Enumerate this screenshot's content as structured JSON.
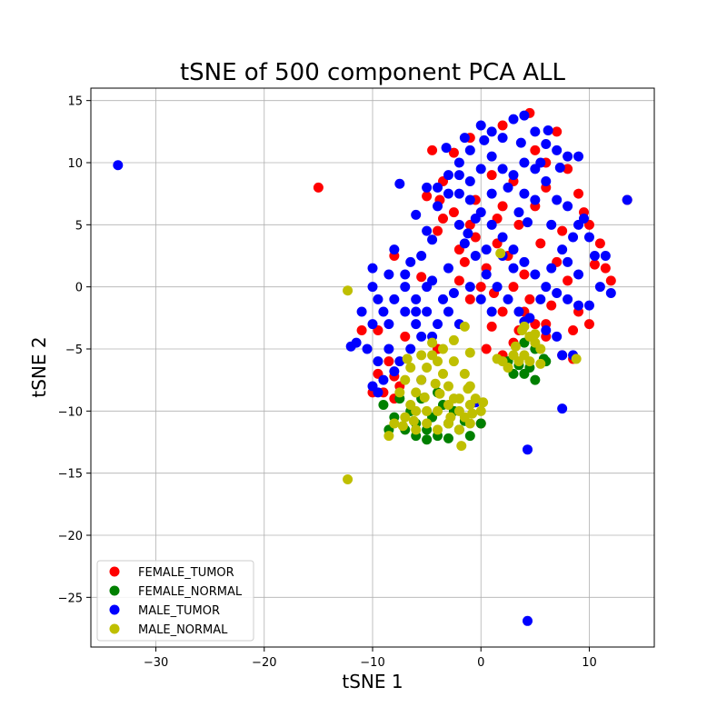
{
  "chart_data": {
    "type": "scatter",
    "title": "tSNE of 500 component PCA ALL",
    "xlabel": "tSNE 1",
    "ylabel": "tSNE 2",
    "xlim": [
      -36,
      16
    ],
    "ylim": [
      -29,
      16
    ],
    "x_ticks": [
      -30,
      -20,
      -10,
      0,
      10
    ],
    "y_ticks": [
      -25,
      -20,
      -15,
      -10,
      -5,
      0,
      5,
      10,
      15
    ],
    "grid": true,
    "legend_position": "lower-left",
    "series": [
      {
        "name": "FEMALE_TUMOR",
        "color": "#ff0000",
        "points": [
          [
            -15,
            8
          ],
          [
            13.5,
            7
          ],
          [
            -4.5,
            11
          ],
          [
            -3.5,
            8.5
          ],
          [
            -2.5,
            10.8
          ],
          [
            -1,
            12
          ],
          [
            2,
            13
          ],
          [
            4.5,
            14
          ],
          [
            7,
            12.5
          ],
          [
            8,
            9.5
          ],
          [
            9,
            7.5
          ],
          [
            10,
            5
          ],
          [
            11,
            3.5
          ],
          [
            11.5,
            1.5
          ],
          [
            10,
            -3
          ],
          [
            8.5,
            -3.5
          ],
          [
            6,
            -4
          ],
          [
            5,
            -3
          ],
          [
            3,
            -4.5
          ],
          [
            1,
            -3.2
          ],
          [
            0.5,
            -5
          ],
          [
            2,
            -5.5
          ],
          [
            4,
            -2
          ],
          [
            6.5,
            -1.5
          ],
          [
            8,
            0.5
          ],
          [
            9,
            -2
          ],
          [
            7,
            2
          ],
          [
            5.5,
            3.5
          ],
          [
            3.5,
            5
          ],
          [
            1.5,
            5.5
          ],
          [
            -0.5,
            4
          ],
          [
            -1.5,
            2
          ],
          [
            -2,
            0.5
          ],
          [
            -1,
            -1
          ],
          [
            0.5,
            1.5
          ],
          [
            2.5,
            2.5
          ],
          [
            4,
            1
          ],
          [
            5,
            6.5
          ],
          [
            6,
            8
          ],
          [
            3,
            8.5
          ],
          [
            1,
            9
          ],
          [
            -0.5,
            7
          ],
          [
            -2.5,
            6
          ],
          [
            -3.5,
            5.5
          ],
          [
            -4,
            4.5
          ],
          [
            -2,
            3
          ],
          [
            1.5,
            3.5
          ],
          [
            3,
            0
          ],
          [
            2,
            -2
          ],
          [
            4.5,
            -1
          ],
          [
            7.5,
            -5.5
          ],
          [
            8.5,
            -5.8
          ],
          [
            0,
            -11
          ],
          [
            -8,
            2.5
          ],
          [
            -5.5,
            0.8
          ],
          [
            -7,
            -4
          ],
          [
            -8.5,
            -6
          ],
          [
            -9.5,
            -3.5
          ],
          [
            -9.5,
            -7
          ],
          [
            -9,
            -8.5
          ],
          [
            -11,
            -3.5
          ],
          [
            -10,
            -8.5
          ],
          [
            -8,
            -9
          ],
          [
            -4,
            -5
          ],
          [
            -7.5,
            -8
          ],
          [
            -8,
            -7.2
          ],
          [
            12,
            0.5
          ],
          [
            6,
            10
          ],
          [
            9.5,
            6
          ],
          [
            2,
            6.5
          ],
          [
            -1,
            5
          ],
          [
            0,
            0
          ],
          [
            3.5,
            -3.5
          ],
          [
            6,
            -3
          ],
          [
            7.5,
            4.5
          ],
          [
            10.5,
            1.8
          ],
          [
            5,
            11
          ],
          [
            -3.8,
            7
          ],
          [
            -5,
            7.3
          ],
          [
            1.2,
            -0.5
          ]
        ]
      },
      {
        "name": "FEMALE_NORMAL",
        "color": "#008000",
        "points": [
          [
            -9,
            -9.5
          ],
          [
            -8,
            -10.5
          ],
          [
            -7,
            -11.5
          ],
          [
            -6,
            -12
          ],
          [
            -5,
            -11.5
          ],
          [
            -4,
            -12
          ],
          [
            -3,
            -11
          ],
          [
            -2,
            -11.5
          ],
          [
            -1,
            -12
          ],
          [
            0,
            -11
          ],
          [
            -6.5,
            -10
          ],
          [
            -5.5,
            -9
          ],
          [
            -4.5,
            -10.5
          ],
          [
            -3.5,
            -9.5
          ],
          [
            -2.5,
            -10
          ],
          [
            -6,
            -11
          ],
          [
            -7.5,
            -9
          ],
          [
            -4,
            -8.5
          ],
          [
            -3,
            -12.2
          ],
          [
            -5,
            -12.3
          ],
          [
            4,
            -4.5
          ],
          [
            5,
            -5
          ],
          [
            6,
            -6
          ],
          [
            5,
            -7.5
          ],
          [
            4.5,
            -6.5
          ],
          [
            3,
            -7
          ],
          [
            2.5,
            -6
          ],
          [
            4,
            -7
          ],
          [
            -8.5,
            -11.5
          ],
          [
            -1.5,
            -10.8
          ],
          [
            3.5,
            -6.3
          ],
          [
            5.8,
            -5.8
          ]
        ]
      },
      {
        "name": "MALE_TUMOR",
        "color": "#0000ff",
        "points": [
          [
            -33.5,
            9.8
          ],
          [
            13.5,
            7
          ],
          [
            4.3,
            -13.1
          ],
          [
            4.3,
            -26.9
          ],
          [
            -9.5,
            -8.5
          ],
          [
            7.5,
            -9.8
          ],
          [
            -1.5,
            12
          ],
          [
            -1,
            11
          ],
          [
            0,
            13
          ],
          [
            1,
            12.5
          ],
          [
            2,
            12
          ],
          [
            3,
            13.5
          ],
          [
            4,
            13.8
          ],
          [
            5,
            12.5
          ],
          [
            6,
            11.5
          ],
          [
            7,
            11
          ],
          [
            8,
            10.5
          ],
          [
            9,
            10.5
          ],
          [
            -2,
            10
          ],
          [
            -3,
            9
          ],
          [
            -4,
            8
          ],
          [
            -5,
            8
          ],
          [
            -6,
            5.8
          ],
          [
            -5,
            4.5
          ],
          [
            -4,
            6.5
          ],
          [
            -3,
            7.5
          ],
          [
            -2,
            7.5
          ],
          [
            -1,
            8.5
          ],
          [
            0,
            9.5
          ],
          [
            1,
            10.5
          ],
          [
            2,
            9.5
          ],
          [
            3,
            9
          ],
          [
            4,
            10
          ],
          [
            5,
            9.5
          ],
          [
            6,
            8.5
          ],
          [
            7,
            7
          ],
          [
            8,
            6.5
          ],
          [
            9,
            5
          ],
          [
            10,
            4
          ],
          [
            10.5,
            2.5
          ],
          [
            11.5,
            2.5
          ],
          [
            11,
            0
          ],
          [
            12,
            -0.5
          ],
          [
            10,
            -1.5
          ],
          [
            9,
            -1.5
          ],
          [
            8,
            -1
          ],
          [
            7,
            -0.5
          ],
          [
            6,
            0
          ],
          [
            5,
            1
          ],
          [
            4,
            2
          ],
          [
            3,
            3
          ],
          [
            2,
            4
          ],
          [
            1,
            5
          ],
          [
            0,
            6
          ],
          [
            -1,
            7
          ],
          [
            -2,
            5
          ],
          [
            -1.5,
            3.5
          ],
          [
            -0.5,
            2.5
          ],
          [
            0.5,
            1
          ],
          [
            1.5,
            0
          ],
          [
            2.5,
            -1
          ],
          [
            3.5,
            -2
          ],
          [
            4.5,
            -2.5
          ],
          [
            5.5,
            -1
          ],
          [
            6.5,
            1.5
          ],
          [
            7.5,
            3
          ],
          [
            8.5,
            4
          ],
          [
            9.5,
            5.5
          ],
          [
            -7.5,
            8.3
          ],
          [
            -8,
            3
          ],
          [
            -10,
            1.5
          ],
          [
            -8.5,
            1
          ],
          [
            -7,
            0
          ],
          [
            -6,
            -1
          ],
          [
            -5,
            -2
          ],
          [
            -4,
            -3
          ],
          [
            -3,
            -2
          ],
          [
            -2,
            -3
          ],
          [
            -6,
            -3
          ],
          [
            -7,
            -2
          ],
          [
            -8,
            -1
          ],
          [
            -9,
            -2
          ],
          [
            -10,
            -3
          ],
          [
            -11,
            -2
          ],
          [
            -11.5,
            -4.5
          ],
          [
            -10.5,
            -5
          ],
          [
            -9.5,
            -6
          ],
          [
            -8.5,
            -5
          ],
          [
            -7.5,
            -6
          ],
          [
            -6.5,
            -5
          ],
          [
            -5.5,
            -4
          ],
          [
            -4.5,
            -4
          ],
          [
            -3.5,
            -1
          ],
          [
            -2.5,
            -0.5
          ],
          [
            -1,
            0
          ],
          [
            0,
            -1
          ],
          [
            1,
            -2
          ],
          [
            -0.5,
            -9.3
          ],
          [
            -12,
            -4.8
          ],
          [
            -10,
            -8
          ],
          [
            -9,
            -7.5
          ],
          [
            -8,
            -6.8
          ],
          [
            -5.5,
            -7.5
          ],
          [
            -4.5,
            0.5
          ],
          [
            -3,
            1.5
          ],
          [
            -6.5,
            2
          ],
          [
            -4.5,
            3.8
          ],
          [
            -5.5,
            2.5
          ],
          [
            -7,
            1
          ],
          [
            -8.5,
            -3
          ],
          [
            -9.5,
            -1
          ],
          [
            -10,
            0
          ],
          [
            -6,
            -2
          ],
          [
            -5,
            0
          ],
          [
            4,
            -2.8
          ],
          [
            6,
            -3.5
          ],
          [
            7,
            -4
          ],
          [
            7.5,
            -5.5
          ],
          [
            8.5,
            -5.5
          ],
          [
            3,
            1.5
          ],
          [
            2,
            2.5
          ],
          [
            0.5,
            3
          ],
          [
            -0.5,
            5.5
          ],
          [
            3.5,
            6
          ],
          [
            5,
            7
          ],
          [
            6.5,
            5
          ],
          [
            8,
            2
          ],
          [
            9,
            1
          ],
          [
            1,
            7.5
          ],
          [
            2.5,
            8
          ],
          [
            4,
            7.5
          ],
          [
            5.5,
            10
          ],
          [
            -2,
            9
          ],
          [
            -3.2,
            11.2
          ],
          [
            0.3,
            11.8
          ],
          [
            3.7,
            11.6
          ],
          [
            6.2,
            12.6
          ],
          [
            7.3,
            9.6
          ],
          [
            4.3,
            5.2
          ],
          [
            -1.2,
            4.3
          ]
        ]
      },
      {
        "name": "MALE_NORMAL",
        "color": "#bfbf00",
        "points": [
          [
            -12.3,
            -0.3
          ],
          [
            -12.3,
            -15.5
          ],
          [
            1.8,
            2.7
          ],
          [
            -8.5,
            -12
          ],
          [
            -8,
            -11
          ],
          [
            -7,
            -10.5
          ],
          [
            -6.5,
            -9.5
          ],
          [
            -6,
            -8.5
          ],
          [
            -5.5,
            -7.5
          ],
          [
            -5,
            -6.5
          ],
          [
            -4.5,
            -5.5
          ],
          [
            -4,
            -6
          ],
          [
            -3.5,
            -7
          ],
          [
            -3,
            -8
          ],
          [
            -2.5,
            -9
          ],
          [
            -2,
            -10
          ],
          [
            -1.5,
            -10.5
          ],
          [
            -1,
            -11
          ],
          [
            -6,
            -11.5
          ],
          [
            -5,
            -11
          ],
          [
            -4,
            -11.5
          ],
          [
            -3,
            -11
          ],
          [
            -2,
            -11.5
          ],
          [
            -7.5,
            -8.5
          ],
          [
            -7,
            -7.5
          ],
          [
            -6.5,
            -6.5
          ],
          [
            -5.5,
            -5.5
          ],
          [
            -4.5,
            -4.5
          ],
          [
            -3.5,
            -5
          ],
          [
            -2.5,
            -6
          ],
          [
            -1.5,
            -7
          ],
          [
            -1,
            -8
          ],
          [
            -0.5,
            -9
          ],
          [
            0,
            -10
          ],
          [
            -1,
            -9.5
          ],
          [
            -2,
            -9
          ],
          [
            -3,
            -9.5
          ],
          [
            -4,
            -10
          ],
          [
            -5,
            -10
          ],
          [
            -6,
            -10
          ],
          [
            -1.8,
            -12.8
          ],
          [
            -2.5,
            -4.3
          ],
          [
            -1.5,
            -3.2
          ],
          [
            -1,
            -5.3
          ],
          [
            3.8,
            -3.5
          ],
          [
            4.5,
            -4
          ],
          [
            5,
            -4.5
          ],
          [
            5.5,
            -5
          ],
          [
            4,
            -5.5
          ],
          [
            3,
            -5.5
          ],
          [
            2,
            -6
          ],
          [
            1.5,
            -5.8
          ],
          [
            2.5,
            -6.5
          ],
          [
            3.5,
            -6
          ],
          [
            4.5,
            -6
          ],
          [
            5.5,
            -6.2
          ],
          [
            4,
            -3.2
          ],
          [
            8.8,
            -5.8
          ],
          [
            5,
            -3.8
          ],
          [
            3.2,
            -4.8
          ],
          [
            -6.8,
            -5.8
          ],
          [
            -4.2,
            -7.8
          ],
          [
            -3.8,
            -8.6
          ],
          [
            -5.2,
            -8.9
          ],
          [
            -6.2,
            -10.8
          ],
          [
            -7.2,
            -11.2
          ],
          [
            -2.8,
            -10.5
          ],
          [
            -0.8,
            -10.2
          ],
          [
            0.2,
            -9.3
          ],
          [
            -1.2,
            -8.2
          ]
        ]
      }
    ]
  }
}
